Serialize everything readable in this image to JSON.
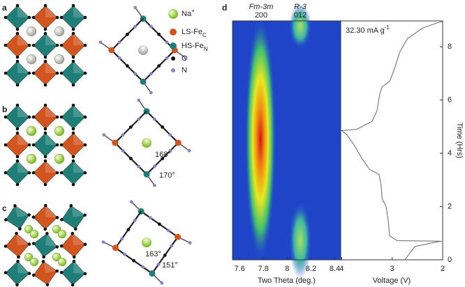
{
  "panels": {
    "a": "a",
    "b": "b",
    "c": "c",
    "d": "d"
  },
  "legend": [
    {
      "label": "Na",
      "sup": "+"
    },
    {
      "label": "LS-Fe",
      "sub": "C"
    },
    {
      "label": "HS-Fe",
      "sub": "N"
    },
    {
      "label": "C"
    },
    {
      "label": "N"
    }
  ],
  "angles": {
    "b": [
      "168°",
      "170°"
    ],
    "c": [
      "163°",
      "151°"
    ]
  },
  "chart_data": [
    {
      "type": "heatmap",
      "peaks": [
        {
          "phase": "Fm-3m",
          "hkl": "200"
        },
        {
          "phase": "R-3",
          "hkl": "012"
        }
      ],
      "x_label": "Two Theta (deg.)",
      "xlim": [
        7.54,
        8.45
      ],
      "xticks": [
        7.6,
        7.8,
        8.0,
        8.2,
        8.4
      ]
    },
    {
      "type": "line",
      "annotation": {
        "text": "32.30 mA g",
        "sup": "-1"
      },
      "x_label": "Voltage (V)",
      "y_label": "Time (Hrs)",
      "xlim": [
        4.02,
        2
      ],
      "xticks": [
        4,
        3,
        2
      ],
      "ylim": [
        0,
        8.97
      ],
      "yticks": [
        0,
        2,
        4,
        6,
        8
      ],
      "color": "#666666",
      "series": [
        {
          "x": [
            2.75,
            2.55,
            2.1,
            2.02,
            2.9,
            3.05,
            3.08,
            3.12,
            3.2,
            3.22,
            3.26,
            3.45,
            3.6,
            3.75,
            3.9,
            4.0,
            3.7,
            3.4,
            3.3,
            3.25,
            3.2,
            3.05,
            2.95,
            2.85,
            2.7,
            2.4,
            2.1,
            2.0
          ],
          "y": [
            0.0,
            0.5,
            0.68,
            0.7,
            0.72,
            0.9,
            1.5,
            2.0,
            2.3,
            2.8,
            3.2,
            3.4,
            3.8,
            4.3,
            4.7,
            4.85,
            4.9,
            5.2,
            5.6,
            6.2,
            6.5,
            6.7,
            7.2,
            7.8,
            8.3,
            8.7,
            8.9,
            8.95
          ]
        }
      ]
    }
  ]
}
